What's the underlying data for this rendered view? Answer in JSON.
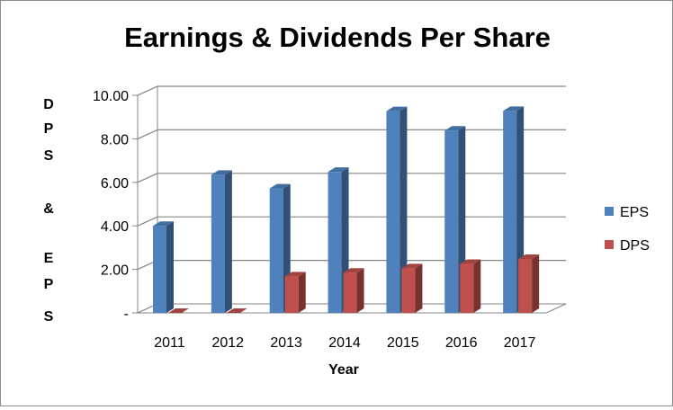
{
  "chart_data": {
    "type": "bar",
    "title": "Earnings & Dividends Per Share",
    "xlabel": "Year",
    "ylabel": "DPS & EPS",
    "ylabel_letters": [
      "D",
      "P",
      "S",
      "&",
      "E",
      "P",
      "S"
    ],
    "categories": [
      "2011",
      "2012",
      "2013",
      "2014",
      "2015",
      "2016",
      "2017"
    ],
    "y_ticks": [
      "-",
      "2.00",
      "4.00",
      "6.00",
      "8.00",
      "10.00"
    ],
    "ylim": [
      0,
      10
    ],
    "grid": true,
    "legend_position": "right",
    "series": [
      {
        "name": "EPS",
        "color": "#4f81bd",
        "values": [
          4.0,
          6.35,
          5.72,
          6.48,
          9.27,
          8.38,
          9.28
        ]
      },
      {
        "name": "DPS",
        "color": "#c0504d",
        "values": [
          0.0,
          0.0,
          1.68,
          1.85,
          2.05,
          2.25,
          2.48
        ]
      }
    ]
  }
}
